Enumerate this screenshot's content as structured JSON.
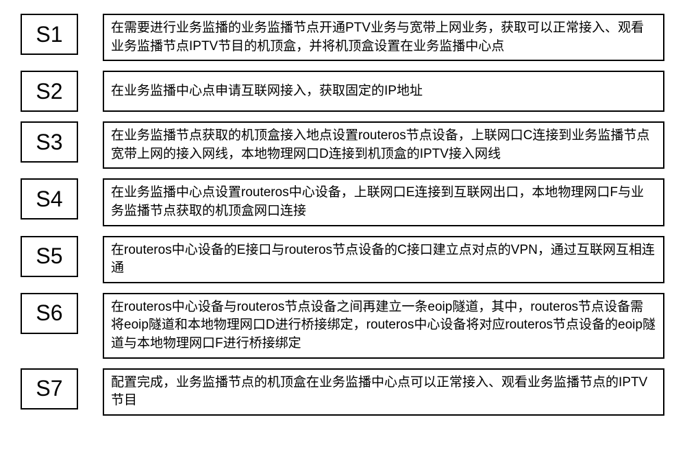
{
  "flow": {
    "border_color": "#000000",
    "background_color": "#ffffff",
    "label_fontsize": 32,
    "desc_fontsize": 19,
    "row_gap": 14,
    "label_box_width": 84,
    "gap_between": 36,
    "steps": [
      {
        "label": "S1",
        "text": "在需要进行业务监播的业务监播节点开通PTV业务与宽带上网业务，获取可以正常接入、观看业务监播节点IPTV节目的机顶盒，并将机顶盒设置在业务监播中心点"
      },
      {
        "label": "S2",
        "text": "在业务监播中心点申请互联网接入，获取固定的IP地址"
      },
      {
        "label": "S3",
        "text": "在业务监播节点获取的机顶盒接入地点设置routeros节点设备，上联网口C连接到业务监播节点宽带上网的接入网线，本地物理网口D连接到机顶盒的IPTV接入网线"
      },
      {
        "label": "S4",
        "text": "在业务监播中心点设置routeros中心设备，上联网口E连接到互联网出口，本地物理网口F与业务监播节点获取的机顶盒网口连接"
      },
      {
        "label": "S5",
        "text": "在routeros中心设备的E接口与routeros节点设备的C接口建立点对点的VPN，通过互联网互相连通"
      },
      {
        "label": "S6",
        "text": "在routeros中心设备与routeros节点设备之间再建立一条eoip隧道，其中，routeros节点设备需将eoip隧道和本地物理网口D进行桥接绑定，routeros中心设备将对应routeros节点设备的eoip隧道与本地物理网口F进行桥接绑定"
      },
      {
        "label": "S7",
        "text": "配置完成，业务监播节点的机顶盒在业务监播中心点可以正常接入、观看业务监播节点的IPTV节目"
      }
    ]
  }
}
